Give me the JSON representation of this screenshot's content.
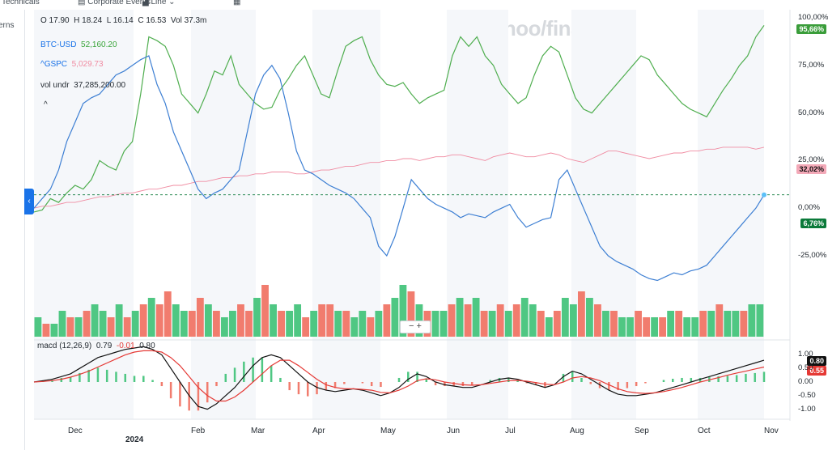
{
  "toolbar": {
    "technicals": "Technicals",
    "events": "Corporate Events",
    "line": "Line"
  },
  "left_text": "erns",
  "watermark": "yahoo/finance",
  "ohlc": {
    "o": "O 17.90",
    "h": "H 18.24",
    "l": "L 16.14",
    "c": "C 16.53",
    "vol": "Vol 37.3m"
  },
  "legend": {
    "btc_name": "BTC-USD",
    "btc_value": "52,160.20",
    "gspc_name": "^GSPC",
    "gspc_value": "5,029.73",
    "vol_name": "vol undr",
    "vol_value": "37,285,200.00",
    "caret": "^"
  },
  "colors": {
    "btc": "#4fae4f",
    "gspc": "#f08ca2",
    "main": "#3d7fd3",
    "up": "#4fc783",
    "down": "#f17c6e",
    "macd": "#111111",
    "signal": "#e53935",
    "accent": "#1a73e8"
  },
  "chart_data": [
    {
      "type": "line",
      "title": "",
      "y_unit": "percent",
      "ylim": [
        -45,
        100
      ],
      "yticks": [
        "100,00%",
        "75,00%",
        "50,00%",
        "25,00%",
        "0,00%",
        "-25,00%"
      ],
      "x_labels": [
        "Dec",
        "2024",
        "Feb",
        "Mar",
        "Apr",
        "May",
        "Jun",
        "Jul",
        "Aug",
        "Sep",
        "Oct",
        "Nov"
      ],
      "series": [
        {
          "name": "BTC-USD",
          "last_label": "95,66%",
          "values": [
            -2,
            -1,
            5,
            3,
            8,
            12,
            10,
            15,
            25,
            22,
            20,
            30,
            35,
            60,
            90,
            88,
            85,
            75,
            60,
            55,
            50,
            60,
            72,
            70,
            80,
            65,
            60,
            55,
            52,
            53,
            62,
            68,
            75,
            80,
            70,
            60,
            58,
            72,
            85,
            88,
            90,
            78,
            70,
            65,
            64,
            66,
            60,
            55,
            58,
            60,
            62,
            80,
            90,
            85,
            90,
            80,
            75,
            65,
            60,
            55,
            58,
            70,
            80,
            85,
            82,
            70,
            58,
            52,
            50,
            55,
            60,
            65,
            70,
            75,
            80,
            78,
            70,
            65,
            60,
            55,
            52,
            50,
            48,
            55,
            62,
            68,
            75,
            80,
            90,
            96
          ]
        },
        {
          "name": "^GSPC",
          "last_label": "32,02%",
          "values": [
            0,
            1,
            1,
            2,
            3,
            3,
            4,
            5,
            6,
            6,
            7,
            8,
            8,
            9,
            10,
            10,
            11,
            12,
            12,
            13,
            14,
            14,
            15,
            16,
            16,
            17,
            17,
            18,
            18,
            19,
            19,
            19,
            18,
            18,
            19,
            20,
            20,
            21,
            22,
            22,
            23,
            24,
            24,
            25,
            25,
            26,
            26,
            25,
            26,
            27,
            27,
            28,
            28,
            27,
            26,
            25,
            27,
            28,
            29,
            28,
            27,
            27,
            28,
            29,
            28,
            26,
            25,
            24,
            26,
            28,
            30,
            30,
            29,
            28,
            27,
            26,
            27,
            28,
            29,
            29,
            30,
            30,
            31,
            31,
            32,
            32,
            32,
            32,
            31,
            32
          ]
        },
        {
          "name": "vol undr",
          "last_label": "6,76%",
          "values": [
            0,
            5,
            10,
            20,
            35,
            45,
            55,
            58,
            60,
            65,
            70,
            72,
            75,
            78,
            80,
            65,
            55,
            40,
            30,
            20,
            10,
            5,
            8,
            10,
            15,
            20,
            40,
            60,
            70,
            75,
            68,
            50,
            30,
            20,
            18,
            15,
            12,
            10,
            8,
            5,
            0,
            -5,
            -20,
            -25,
            -15,
            0,
            15,
            10,
            5,
            2,
            0,
            -2,
            -5,
            -3,
            -4,
            -5,
            -2,
            0,
            2,
            -5,
            -10,
            -8,
            -6,
            -5,
            15,
            20,
            10,
            0,
            -10,
            -20,
            -25,
            -28,
            -30,
            -32,
            -35,
            -37,
            -38,
            -36,
            -34,
            -35,
            -33,
            -32,
            -30,
            -25,
            -20,
            -15,
            -10,
            -5,
            0,
            7
          ]
        }
      ]
    },
    {
      "type": "bar",
      "title": "",
      "series_name": "volume",
      "values": [
        3,
        2,
        2,
        4,
        3,
        3,
        4,
        5,
        4,
        3,
        5,
        3,
        4,
        5,
        6,
        5,
        7,
        5,
        4,
        4,
        6,
        5,
        4,
        3,
        4,
        5,
        4,
        6,
        8,
        5,
        4,
        4,
        5,
        3,
        4,
        5,
        5,
        4,
        4,
        3,
        4,
        3,
        4,
        5,
        6,
        8,
        7,
        5,
        4,
        4,
        4,
        5,
        6,
        5,
        6,
        4,
        4,
        5,
        4,
        5,
        6,
        5,
        4,
        3,
        4,
        6,
        5,
        7,
        6,
        5,
        4,
        4,
        3,
        3,
        4,
        3,
        3,
        3,
        4,
        4,
        3,
        3,
        4,
        4,
        5,
        4,
        4,
        4,
        5,
        5
      ],
      "up": [
        1,
        0,
        1,
        1,
        0,
        1,
        0,
        1,
        1,
        0,
        1,
        0,
        1,
        0,
        1,
        0,
        0,
        1,
        1,
        0,
        0,
        1,
        0,
        1,
        1,
        0,
        0,
        1,
        0,
        1,
        0,
        1,
        1,
        0,
        1,
        0,
        0,
        1,
        0,
        1,
        1,
        0,
        1,
        0,
        1,
        1,
        0,
        1,
        0,
        1,
        1,
        0,
        1,
        0,
        1,
        0,
        1,
        0,
        1,
        0,
        1,
        1,
        0,
        1,
        0,
        1,
        1,
        0,
        1,
        0,
        1,
        0,
        1,
        1,
        0,
        0,
        1,
        0,
        1,
        0,
        1,
        1,
        0,
        1,
        0,
        1,
        1,
        0,
        1,
        1
      ]
    },
    {
      "type": "line",
      "title": "macd (12,26,9)",
      "values_text": {
        "macd": "0.79",
        "signal": "-0.01",
        "hist": "0.80"
      },
      "ylim": [
        -1.25,
        1.25
      ],
      "yticks": [
        "1.00",
        "0.50",
        "0.00",
        "-0.50",
        "-1.00"
      ],
      "tags": {
        "macd": "0.80",
        "signal": "0.55"
      },
      "macd": [
        0,
        0.05,
        0.1,
        0.2,
        0.3,
        0.5,
        0.7,
        0.9,
        1.0,
        1.1,
        1.2,
        1.25,
        1.3,
        1.2,
        1.0,
        0.5,
        0.0,
        -0.5,
        -0.9,
        -1.0,
        -0.8,
        -0.5,
        -0.2,
        0.2,
        0.6,
        0.9,
        1.0,
        0.9,
        0.6,
        0.3,
        0.0,
        -0.2,
        -0.3,
        -0.35,
        -0.3,
        -0.25,
        -0.3,
        -0.4,
        -0.5,
        -0.4,
        -0.2,
        0.1,
        0.3,
        0.2,
        0.0,
        -0.1,
        -0.15,
        -0.2,
        -0.2,
        -0.1,
        0.0,
        0.1,
        0.15,
        0.1,
        0.0,
        -0.1,
        -0.2,
        -0.1,
        0.2,
        0.4,
        0.3,
        0.1,
        -0.1,
        -0.3,
        -0.45,
        -0.5,
        -0.5,
        -0.45,
        -0.4,
        -0.3,
        -0.2,
        -0.1,
        0.0,
        0.1,
        0.2,
        0.3,
        0.4,
        0.5,
        0.6,
        0.7,
        0.8
      ],
      "signal": [
        0,
        0.02,
        0.05,
        0.1,
        0.18,
        0.28,
        0.4,
        0.55,
        0.7,
        0.85,
        1.0,
        1.1,
        1.15,
        1.15,
        1.1,
        0.9,
        0.6,
        0.2,
        -0.2,
        -0.5,
        -0.7,
        -0.7,
        -0.55,
        -0.3,
        0.0,
        0.3,
        0.6,
        0.8,
        0.8,
        0.6,
        0.35,
        0.1,
        -0.1,
        -0.2,
        -0.25,
        -0.25,
        -0.27,
        -0.3,
        -0.38,
        -0.4,
        -0.3,
        -0.15,
        0.05,
        0.12,
        0.08,
        0.0,
        -0.05,
        -0.1,
        -0.12,
        -0.1,
        -0.05,
        0.0,
        0.05,
        0.06,
        0.03,
        -0.02,
        -0.08,
        -0.1,
        0.0,
        0.15,
        0.2,
        0.15,
        0.05,
        -0.1,
        -0.25,
        -0.35,
        -0.4,
        -0.42,
        -0.4,
        -0.35,
        -0.28,
        -0.2,
        -0.1,
        0.0,
        0.08,
        0.16,
        0.25,
        0.33,
        0.4,
        0.48,
        0.55
      ]
    }
  ]
}
